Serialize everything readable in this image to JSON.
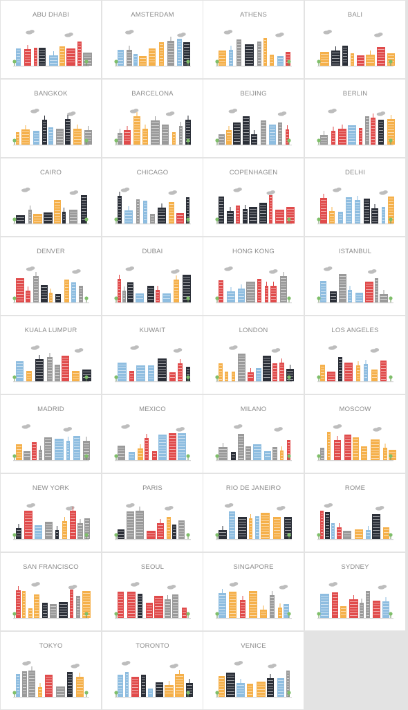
{
  "palette": {
    "dark": "#2b2f38",
    "red": "#e04b4b",
    "blue": "#8ebde0",
    "orange": "#f5b04a",
    "gray": "#9a9a9a",
    "lightgray": "#c7c7c7",
    "tree": "#7fbf6a",
    "cloud": "#bdbdbd",
    "ground": "#d6d6d6"
  },
  "cities": [
    {
      "name": "ABU DHABI"
    },
    {
      "name": "AMSTERDAM"
    },
    {
      "name": "ATHENS"
    },
    {
      "name": "BALI"
    },
    {
      "name": "BANGKOK"
    },
    {
      "name": "BARCELONA"
    },
    {
      "name": "BEIJING"
    },
    {
      "name": "BERLIN"
    },
    {
      "name": "CAIRO"
    },
    {
      "name": "CHICAGO"
    },
    {
      "name": "COPENHAGEN"
    },
    {
      "name": "DELHI"
    },
    {
      "name": "DENVER"
    },
    {
      "name": "DUBAI"
    },
    {
      "name": "HONG KONG"
    },
    {
      "name": "ISTANBUL"
    },
    {
      "name": "KUALA LUMPUR"
    },
    {
      "name": "KUWAIT"
    },
    {
      "name": "LONDON"
    },
    {
      "name": "LOS ANGELES"
    },
    {
      "name": "MADRID"
    },
    {
      "name": "MEXICO"
    },
    {
      "name": "MILANO"
    },
    {
      "name": "MOSCOW"
    },
    {
      "name": "NEW YORK"
    },
    {
      "name": "PARIS"
    },
    {
      "name": "RIO DE JANEIRO"
    },
    {
      "name": "ROME"
    },
    {
      "name": "SAN FRANCISCO"
    },
    {
      "name": "SEOUL"
    },
    {
      "name": "SINGAPORE"
    },
    {
      "name": "SYDNEY"
    },
    {
      "name": "TOKYO"
    },
    {
      "name": "TORONTO"
    },
    {
      "name": "VENICE"
    }
  ]
}
